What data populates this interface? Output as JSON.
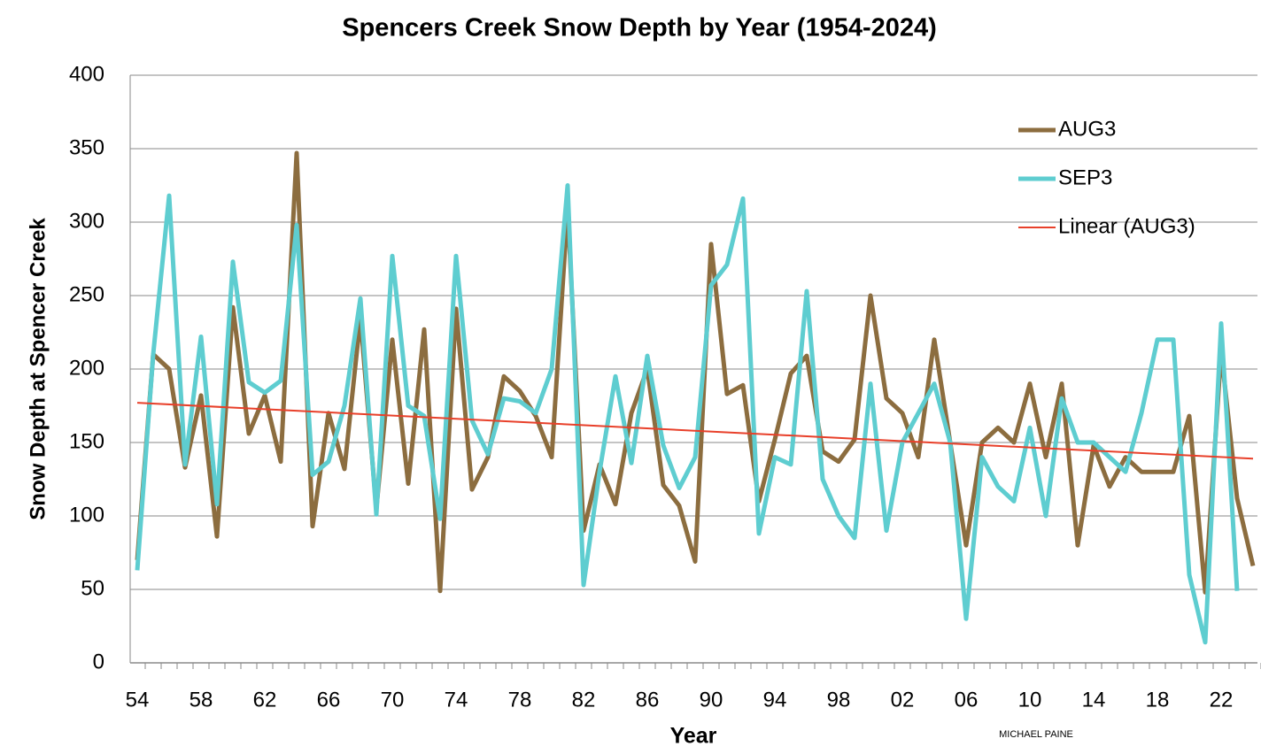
{
  "chart_data": {
    "type": "line",
    "title": "Spencers Creek Snow Depth by Year (1954-2024)",
    "x_label": "Year",
    "y_label": "Snow Depth at Spencer Creek",
    "annotation": "MICHAEL PAINE",
    "categories": [
      "54",
      null,
      null,
      null,
      "58",
      null,
      null,
      null,
      "62",
      null,
      null,
      null,
      "66",
      null,
      null,
      null,
      "70",
      null,
      null,
      null,
      "74",
      null,
      null,
      null,
      "78",
      null,
      null,
      null,
      "82",
      null,
      null,
      null,
      "86",
      null,
      null,
      null,
      "90",
      null,
      null,
      null,
      "94",
      null,
      null,
      null,
      "98",
      null,
      null,
      null,
      "02",
      null,
      null,
      null,
      "06",
      null,
      null,
      null,
      "10",
      null,
      null,
      null,
      "14",
      null,
      null,
      null,
      "18",
      null,
      null,
      null,
      "22",
      null,
      null
    ],
    "series": [
      {
        "name": "AUG3",
        "color": "#8c6d3f",
        "values": [
          70,
          210,
          200,
          133,
          182,
          86,
          242,
          156,
          182,
          137,
          347,
          93,
          170,
          132,
          235,
          105,
          220,
          122,
          227,
          49,
          241,
          118,
          140,
          195,
          185,
          168,
          140,
          310,
          90,
          135,
          108,
          170,
          200,
          121,
          107,
          69,
          285,
          183,
          189,
          110,
          152,
          197,
          209,
          144,
          137,
          152,
          250,
          180,
          170,
          140,
          220,
          150,
          80,
          150,
          160,
          150,
          190,
          140,
          190,
          80,
          148,
          120,
          140,
          130,
          130,
          130,
          168,
          48,
          212,
          112,
          66
        ]
      },
      {
        "name": "SEP3",
        "color": "#5ecdd0",
        "values": [
          63,
          210,
          318,
          135,
          222,
          108,
          273,
          191,
          184,
          192,
          298,
          128,
          137,
          175,
          248,
          101,
          277,
          175,
          168,
          98,
          277,
          165,
          142,
          180,
          178,
          170,
          200,
          325,
          53,
          130,
          195,
          136,
          209,
          148,
          119,
          140,
          257,
          271,
          316,
          88,
          140,
          135,
          253,
          125,
          100,
          85,
          190,
          90,
          150,
          170,
          190,
          150,
          30,
          140,
          120,
          110,
          160,
          100,
          180,
          150,
          150,
          140,
          130,
          170,
          220,
          220,
          60,
          14,
          231,
          49,
          null
        ]
      }
    ],
    "trend": {
      "name": "Linear (AUG3)",
      "color": "#e8402a",
      "from": 177,
      "to": 139
    },
    "ylim": [
      0,
      400
    ],
    "yticks": [
      0,
      50,
      100,
      150,
      200,
      250,
      300,
      350,
      400
    ],
    "grid": true,
    "legend": "upper right"
  }
}
